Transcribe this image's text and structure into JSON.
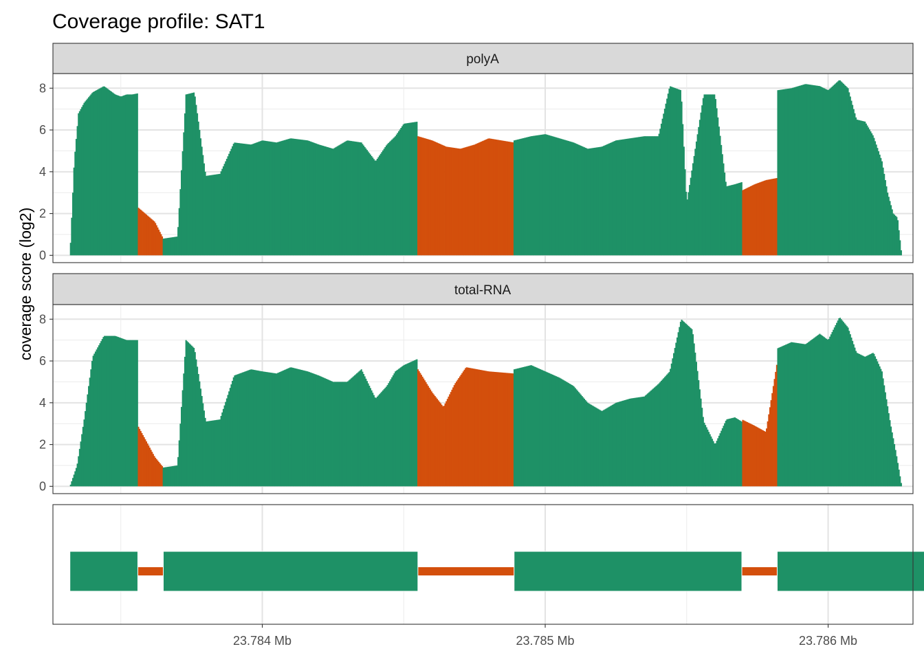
{
  "title": "Coverage profile: SAT1",
  "ylabel": "coverage score (log2)",
  "colors": {
    "exon": "#1e9166",
    "intron": "#d34f0c"
  },
  "chart_data": {
    "type": "area",
    "title": "Coverage profile: SAT1",
    "ylabel": "coverage score (log2)",
    "xlabel": "",
    "x_units": "bp",
    "xlim": [
      23783260,
      23786300
    ],
    "ylim": [
      -0.35,
      8.7
    ],
    "y_ticks": [
      0,
      2,
      4,
      6,
      8
    ],
    "y_tick_labels": [
      "0",
      "2",
      "4",
      "6",
      "8"
    ],
    "x_ticks": [
      23784000,
      23785000,
      23786000
    ],
    "x_tick_labels": [
      "23.784 Mb",
      "23.785 Mb",
      "23.786 Mb"
    ],
    "grid": true,
    "legend": "none",
    "regions": [
      {
        "type": "exon",
        "start": 23783320,
        "end": 23783560
      },
      {
        "type": "intron",
        "start": 23783560,
        "end": 23783650
      },
      {
        "type": "exon",
        "start": 23783650,
        "end": 23784550
      },
      {
        "type": "intron",
        "start": 23784550,
        "end": 23784890
      },
      {
        "type": "exon",
        "start": 23784890,
        "end": 23785695
      },
      {
        "type": "intron",
        "start": 23785695,
        "end": 23785820
      },
      {
        "type": "exon",
        "start": 23785820,
        "end": 23786360
      }
    ],
    "panels": [
      {
        "name": "polyA",
        "coverage": {
          "x": [
            23783320,
            23783335,
            23783350,
            23783370,
            23783400,
            23783440,
            23783480,
            23783500,
            23783520,
            23783540,
            23783559,
            23783560,
            23783620,
            23783650,
            23783700,
            23783730,
            23783760,
            23783800,
            23783850,
            23783900,
            23783960,
            23784000,
            23784050,
            23784100,
            23784160,
            23784200,
            23784250,
            23784300,
            23784350,
            23784400,
            23784440,
            23784470,
            23784500,
            23784549,
            23784550,
            23784600,
            23784650,
            23784700,
            23784750,
            23784800,
            23784889,
            23784890,
            23784950,
            23785000,
            23785050,
            23785100,
            23785150,
            23785200,
            23785250,
            23785300,
            23785350,
            23785400,
            23785440,
            23785480,
            23785500,
            23785560,
            23785600,
            23785640,
            23785670,
            23785694,
            23785695,
            23785740,
            23785780,
            23785819,
            23785820,
            23785870,
            23785920,
            23785970,
            23786000,
            23786040,
            23786070,
            23786100,
            23786130,
            23786160,
            23786190,
            23786210,
            23786230,
            23786245,
            23786260
          ],
          "y": [
            0,
            4.5,
            6.8,
            7.3,
            7.8,
            8.1,
            7.7,
            7.6,
            7.7,
            7.7,
            7.75,
            2.3,
            1.6,
            0.8,
            0.9,
            7.7,
            7.8,
            3.8,
            3.9,
            5.4,
            5.3,
            5.5,
            5.4,
            5.6,
            5.5,
            5.3,
            5.1,
            5.5,
            5.4,
            4.5,
            5.3,
            5.7,
            6.3,
            6.4,
            5.7,
            5.5,
            5.2,
            5.1,
            5.3,
            5.6,
            5.4,
            5.5,
            5.7,
            5.8,
            5.6,
            5.4,
            5.1,
            5.2,
            5.5,
            5.6,
            5.7,
            5.7,
            8.1,
            7.9,
            2.5,
            7.7,
            7.7,
            3.3,
            3.4,
            3.5,
            3.1,
            3.4,
            3.6,
            3.7,
            7.9,
            8.0,
            8.2,
            8.1,
            7.9,
            8.4,
            8.0,
            6.5,
            6.4,
            5.7,
            4.5,
            3.0,
            2.0,
            1.8,
            0
          ]
        }
      },
      {
        "name": "total-RNA",
        "coverage": {
          "x": [
            23783320,
            23783345,
            23783370,
            23783400,
            23783440,
            23783480,
            23783500,
            23783520,
            23783540,
            23783559,
            23783560,
            23783620,
            23783650,
            23783700,
            23783730,
            23783760,
            23783800,
            23783850,
            23783900,
            23783960,
            23784000,
            23784050,
            23784100,
            23784160,
            23784200,
            23784250,
            23784300,
            23784350,
            23784400,
            23784440,
            23784470,
            23784500,
            23784549,
            23784550,
            23784600,
            23784640,
            23784680,
            23784720,
            23784760,
            23784800,
            23784889,
            23784890,
            23784950,
            23785000,
            23785050,
            23785100,
            23785150,
            23785200,
            23785250,
            23785300,
            23785350,
            23785400,
            23785440,
            23785480,
            23785520,
            23785560,
            23785600,
            23785640,
            23785670,
            23785694,
            23785695,
            23785740,
            23785780,
            23785819,
            23785820,
            23785870,
            23785920,
            23785970,
            23786000,
            23786040,
            23786070,
            23786100,
            23786130,
            23786160,
            23786190,
            23786220,
            23786240,
            23786260
          ],
          "y": [
            0,
            1.0,
            3.2,
            6.2,
            7.2,
            7.2,
            7.1,
            7.0,
            7.0,
            7.0,
            2.9,
            1.4,
            0.9,
            1.0,
            7.0,
            6.6,
            3.1,
            3.2,
            5.3,
            5.6,
            5.5,
            5.4,
            5.7,
            5.5,
            5.3,
            5.0,
            5.0,
            5.6,
            4.2,
            4.8,
            5.5,
            5.8,
            6.1,
            5.6,
            4.5,
            3.8,
            4.9,
            5.7,
            5.6,
            5.5,
            5.4,
            5.6,
            5.8,
            5.5,
            5.2,
            4.8,
            4.0,
            3.6,
            4.0,
            4.2,
            4.3,
            4.9,
            5.5,
            8.0,
            7.5,
            3.1,
            2.0,
            3.2,
            3.3,
            3.1,
            3.2,
            2.9,
            2.6,
            5.9,
            6.6,
            6.9,
            6.8,
            7.3,
            7.0,
            8.1,
            7.6,
            6.4,
            6.2,
            6.4,
            5.5,
            3.0,
            1.6,
            0
          ]
        }
      }
    ],
    "gene_model": {
      "exons": [
        {
          "start": 23783320,
          "end": 23783560
        },
        {
          "start": 23783650,
          "end": 23784550
        },
        {
          "start": 23784890,
          "end": 23785695
        },
        {
          "start": 23785820,
          "end": 23786360
        }
      ],
      "introns": [
        {
          "start": 23783560,
          "end": 23783650
        },
        {
          "start": 23784550,
          "end": 23784890
        },
        {
          "start": 23785695,
          "end": 23785820
        }
      ]
    }
  }
}
